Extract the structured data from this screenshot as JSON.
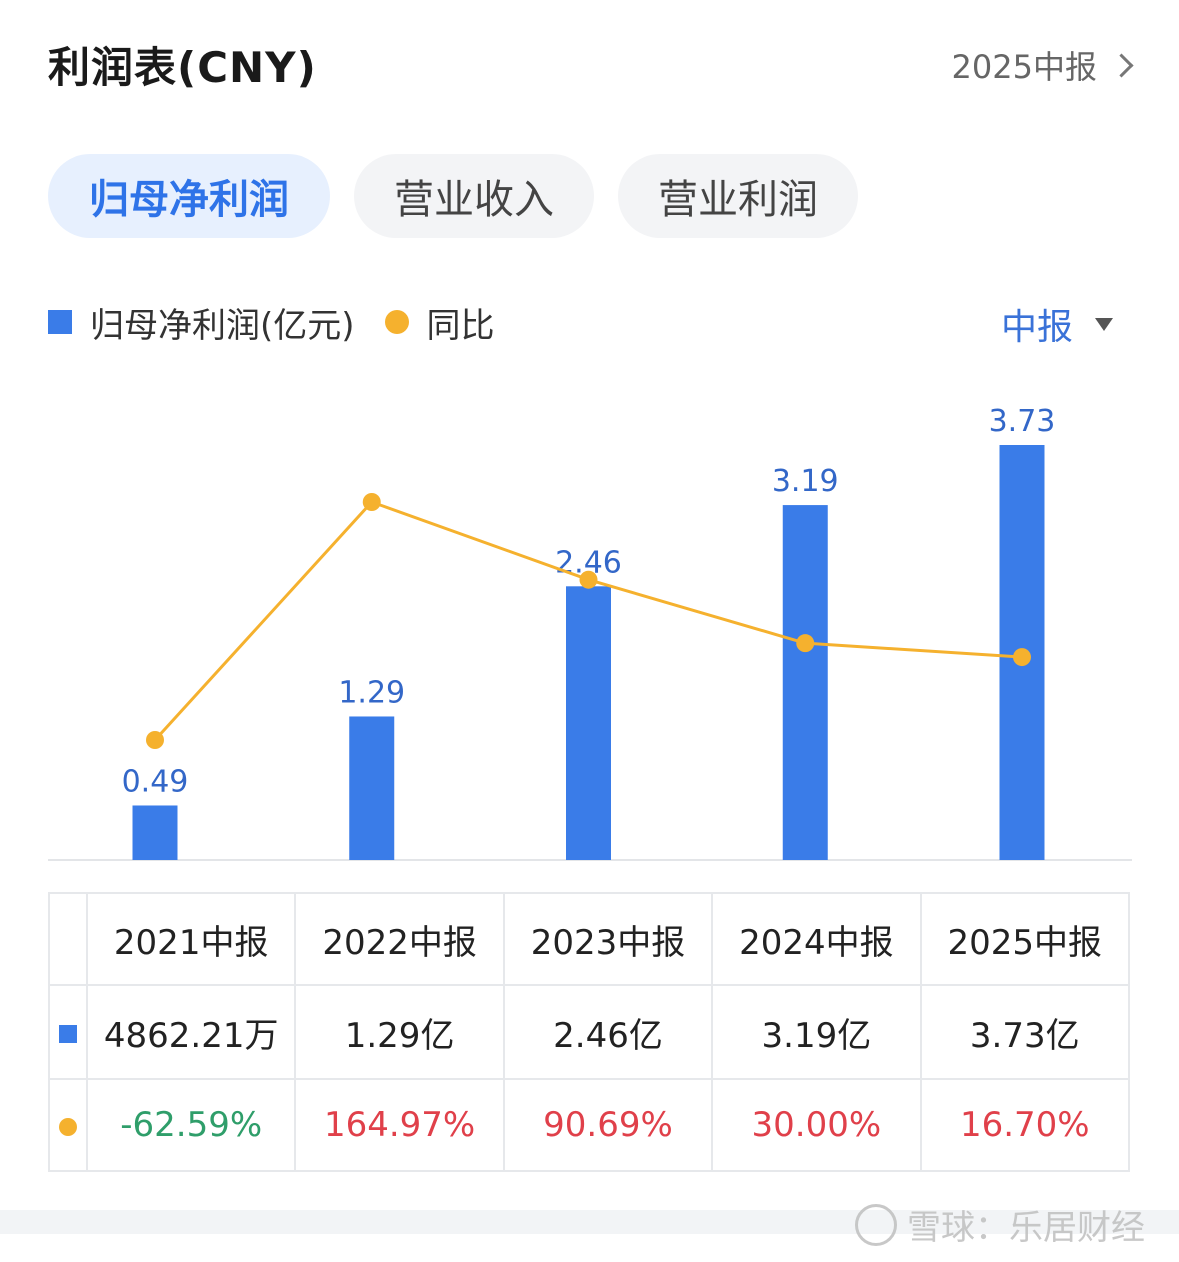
{
  "header": {
    "title": "利润表(CNY)",
    "period_link": "2025中报"
  },
  "tabs": [
    {
      "label": "归母净利润",
      "active": true
    },
    {
      "label": "营业收入",
      "active": false
    },
    {
      "label": "营业利润",
      "active": false
    }
  ],
  "legend": {
    "bar_label": "归母净利润(亿元)",
    "line_label": "同比"
  },
  "period_select": {
    "value": "中报"
  },
  "colors": {
    "bar": "#3a7ce8",
    "line": "#f5b12e",
    "negative": "#2f9e6a",
    "positive": "#e0404a",
    "accent": "#2e73e8"
  },
  "chart_data": {
    "type": "bar",
    "categories": [
      "2021中报",
      "2022中报",
      "2023中报",
      "2024中报",
      "2025中报"
    ],
    "series": [
      {
        "name": "归母净利润(亿元)",
        "type": "bar",
        "values": [
          0.49,
          1.29,
          2.46,
          3.19,
          3.73
        ],
        "labels": [
          "0.49",
          "1.29",
          "2.46",
          "3.19",
          "3.73"
        ]
      },
      {
        "name": "同比",
        "type": "line",
        "values": [
          -62.59,
          164.97,
          90.69,
          30.0,
          16.7
        ]
      }
    ],
    "ylim": [
      0,
      3.73
    ],
    "line_ylim": [
      -62.59,
      164.97
    ],
    "grid": false,
    "legend_position": "top-left"
  },
  "table": {
    "headers": [
      "2021中报",
      "2022中报",
      "2023中报",
      "2024中报",
      "2025中报"
    ],
    "values": [
      "4862.21万",
      "1.29亿",
      "2.46亿",
      "3.19亿",
      "3.73亿"
    ],
    "yoy": [
      "-62.59%",
      "164.97%",
      "90.69%",
      "30.00%",
      "16.70%"
    ]
  },
  "watermark": {
    "text": "雪球：乐居财经"
  }
}
